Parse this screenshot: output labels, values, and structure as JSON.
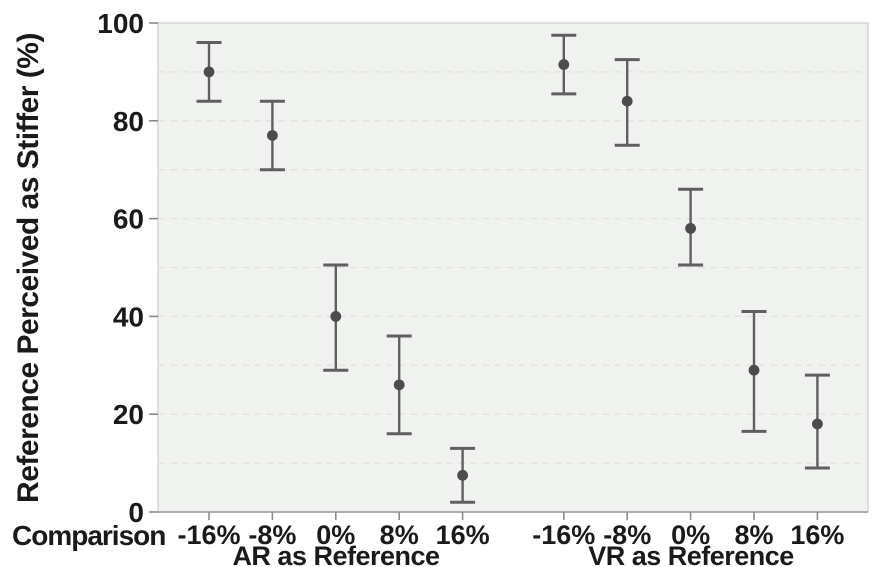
{
  "figure": {
    "y_axis_title": "Reference Perceived as Stiffer (%)",
    "x_axis_prefix": "Comparison"
  },
  "colors": {
    "plot_bg": "#f0f2f0",
    "grid": "#e2e2e0",
    "border": "#d6d6d4",
    "axis_line": "#9a9a9a",
    "tick": "#8a8a8a",
    "error_bar": "#5f5f5f",
    "point": "#4c4c4c",
    "text": "#1a1a1a"
  },
  "chart_data": {
    "type": "scatter",
    "title": "",
    "ylabel": "Reference Perceived as Stiffer (%)",
    "xlabel": "Comparison",
    "ylim": [
      0,
      100
    ],
    "y_ticks": [
      0,
      20,
      40,
      60,
      80,
      100
    ],
    "grid": "horizontal dashed lines every 10 units",
    "legend": "none",
    "marker": "filled circle with vertical error bars and caps",
    "categories": [
      "-16%",
      "-8%",
      "0%",
      "8%",
      "16%"
    ],
    "groups": [
      {
        "label": "AR as Reference",
        "series": [
          {
            "category": "-16%",
            "mean": 90,
            "ci_low": 84,
            "ci_high": 96
          },
          {
            "category": "-8%",
            "mean": 77,
            "ci_low": 70,
            "ci_high": 84
          },
          {
            "category": "0%",
            "mean": 40,
            "ci_low": 29,
            "ci_high": 50.5
          },
          {
            "category": "8%",
            "mean": 26,
            "ci_low": 16,
            "ci_high": 36
          },
          {
            "category": "16%",
            "mean": 7.5,
            "ci_low": 2,
            "ci_high": 13
          }
        ]
      },
      {
        "label": "VR as Reference",
        "series": [
          {
            "category": "-16%",
            "mean": 91.5,
            "ci_low": 85.5,
            "ci_high": 97.5
          },
          {
            "category": "-8%",
            "mean": 84,
            "ci_low": 75,
            "ci_high": 92.5
          },
          {
            "category": "0%",
            "mean": 58,
            "ci_low": 50.5,
            "ci_high": 66
          },
          {
            "category": "8%",
            "mean": 29,
            "ci_low": 16.5,
            "ci_high": 41
          },
          {
            "category": "16%",
            "mean": 18,
            "ci_low": 9,
            "ci_high": 28
          }
        ]
      }
    ]
  }
}
